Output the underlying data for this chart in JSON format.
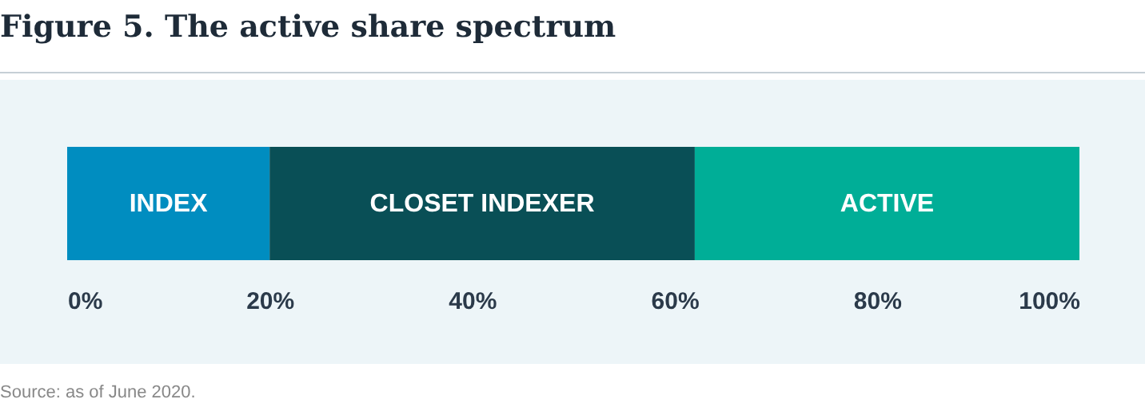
{
  "chart_data": {
    "type": "bar",
    "title": "Figure 5. The active share spectrum",
    "orientation": "horizontal",
    "stacked": true,
    "categories": [
      null
    ],
    "series": [
      {
        "name": "INDEX",
        "color": "#008dc0",
        "values": [
          20
        ]
      },
      {
        "name": "CLOSET INDEXER",
        "color": "#094f56",
        "values": [
          42
        ]
      },
      {
        "name": "ACTIVE",
        "color": "#00ae97",
        "values": [
          38
        ]
      }
    ],
    "xlim": [
      0,
      100
    ],
    "xticks": [
      {
        "value": 0,
        "label": "0%"
      },
      {
        "value": 20,
        "label": "20%"
      },
      {
        "value": 40,
        "label": "40%"
      },
      {
        "value": 60,
        "label": "60%"
      },
      {
        "value": 80,
        "label": "80%"
      },
      {
        "value": 100,
        "label": "100%"
      }
    ],
    "grid": false,
    "annotations": [
      "Source: as of June 2020."
    ]
  }
}
